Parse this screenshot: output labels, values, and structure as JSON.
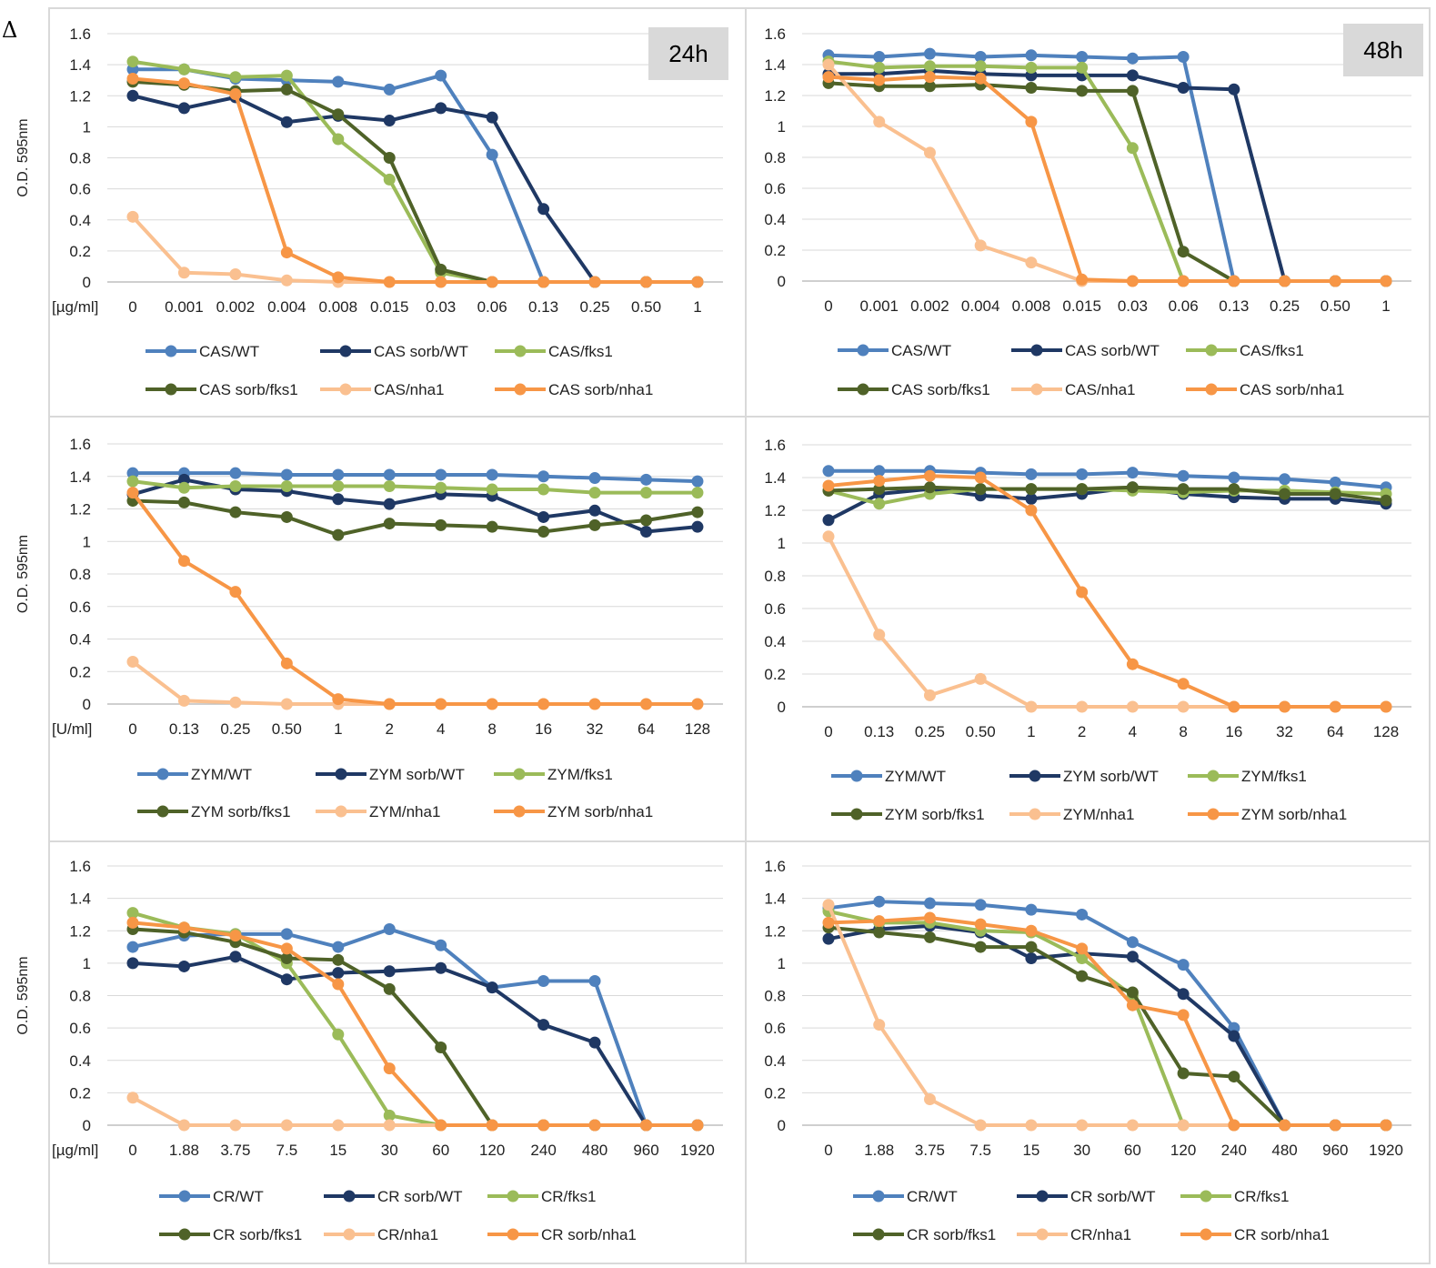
{
  "figure_label": "Δ",
  "series_colors": {
    "wt": "#4f81bd",
    "sorb_wt": "#1f3864",
    "fks1": "#9bbb59",
    "sorb_fks1": "#4f6228",
    "nha1": "#fac090",
    "sorb_nha1": "#f79646"
  },
  "chart_data": [
    {
      "type": "line",
      "panel": "CAS 24h",
      "timepoint": "24h",
      "ylabel": "O.D. 595nm",
      "unit_label": "[µg/ml]",
      "ylim": [
        0,
        1.6
      ],
      "yticks": [
        "0",
        "0.2",
        "0.4",
        "0.6",
        "0.8",
        "1",
        "1.2",
        "1.4",
        "1.6"
      ],
      "categories": [
        "0",
        "0.001",
        "0.002",
        "0.004",
        "0.008",
        "0.015",
        "0.03",
        "0.06",
        "0.13",
        "0.25",
        "0.50",
        "1"
      ],
      "grid": true,
      "legend_position": "bottom",
      "series": [
        {
          "name": "CAS/WT",
          "color_key": "wt",
          "values": [
            1.37,
            1.37,
            1.31,
            1.3,
            1.29,
            1.24,
            1.33,
            0.82,
            0,
            0,
            0,
            0
          ]
        },
        {
          "name": "CAS sorb/WT",
          "color_key": "sorb_wt",
          "values": [
            1.2,
            1.12,
            1.19,
            1.03,
            1.07,
            1.04,
            1.12,
            1.06,
            0.47,
            0,
            0,
            0
          ]
        },
        {
          "name": "CAS/fks1",
          "color_key": "fks1",
          "values": [
            1.42,
            1.37,
            1.32,
            1.33,
            0.92,
            0.66,
            0.06,
            0,
            0,
            0,
            0,
            0
          ]
        },
        {
          "name": "CAS sorb/fks1",
          "color_key": "sorb_fks1",
          "values": [
            1.29,
            1.27,
            1.23,
            1.24,
            1.08,
            0.8,
            0.08,
            0,
            0,
            0,
            0,
            0
          ]
        },
        {
          "name": "CAS/nha1",
          "color_key": "nha1",
          "values": [
            0.42,
            0.06,
            0.05,
            0.01,
            0,
            0,
            0,
            0,
            0,
            0,
            0,
            0
          ]
        },
        {
          "name": "CAS sorb/nha1",
          "color_key": "sorb_nha1",
          "values": [
            1.31,
            1.28,
            1.21,
            0.19,
            0.03,
            0,
            0,
            0,
            0,
            0,
            0,
            0
          ]
        }
      ]
    },
    {
      "type": "line",
      "panel": "CAS 48h",
      "timepoint": "48h",
      "ylabel": "",
      "unit_label": "",
      "ylim": [
        0,
        1.6
      ],
      "yticks": [
        "0",
        "0.2",
        "0.4",
        "0.6",
        "0.8",
        "1",
        "1.2",
        "1.4",
        "1.6"
      ],
      "categories": [
        "0",
        "0.001",
        "0.002",
        "0.004",
        "0.008",
        "0.015",
        "0.03",
        "0.06",
        "0.13",
        "0.25",
        "0.50",
        "1"
      ],
      "grid": true,
      "legend_position": "bottom",
      "series": [
        {
          "name": "CAS/WT",
          "color_key": "wt",
          "values": [
            1.46,
            1.45,
            1.47,
            1.45,
            1.46,
            1.45,
            1.44,
            1.45,
            0,
            0,
            0,
            0
          ]
        },
        {
          "name": "CAS sorb/WT",
          "color_key": "sorb_wt",
          "values": [
            1.34,
            1.34,
            1.36,
            1.34,
            1.33,
            1.33,
            1.33,
            1.25,
            1.24,
            0,
            0,
            0
          ]
        },
        {
          "name": "CAS/fks1",
          "color_key": "fks1",
          "values": [
            1.42,
            1.38,
            1.39,
            1.39,
            1.38,
            1.38,
            0.86,
            0,
            0,
            0,
            0,
            0
          ]
        },
        {
          "name": "CAS sorb/fks1",
          "color_key": "sorb_fks1",
          "values": [
            1.28,
            1.26,
            1.26,
            1.27,
            1.25,
            1.23,
            1.23,
            0.19,
            0,
            0,
            0,
            0
          ]
        },
        {
          "name": "CAS/nha1",
          "color_key": "nha1",
          "values": [
            1.4,
            1.03,
            0.83,
            0.23,
            0.12,
            0,
            0,
            0,
            0,
            0,
            0,
            0
          ]
        },
        {
          "name": "CAS sorb/nha1",
          "color_key": "sorb_nha1",
          "values": [
            1.32,
            1.3,
            1.32,
            1.31,
            1.03,
            0.01,
            0,
            0,
            0,
            0,
            0,
            0
          ]
        }
      ]
    },
    {
      "type": "line",
      "panel": "ZYM 24h",
      "timepoint": "",
      "ylabel": "O.D. 595nm",
      "unit_label": "[U/ml]",
      "ylim": [
        0,
        1.6
      ],
      "yticks": [
        "0",
        "0.2",
        "0.4",
        "0.6",
        "0.8",
        "1",
        "1.2",
        "1.4",
        "1.6"
      ],
      "categories": [
        "0",
        "0.13",
        "0.25",
        "0.50",
        "1",
        "2",
        "4",
        "8",
        "16",
        "32",
        "64",
        "128"
      ],
      "grid": true,
      "legend_position": "bottom",
      "series": [
        {
          "name": "ZYM/WT",
          "color_key": "wt",
          "values": [
            1.42,
            1.42,
            1.42,
            1.41,
            1.41,
            1.41,
            1.41,
            1.41,
            1.4,
            1.39,
            1.38,
            1.37
          ]
        },
        {
          "name": "ZYM sorb/WT",
          "color_key": "sorb_wt",
          "values": [
            1.29,
            1.38,
            1.32,
            1.31,
            1.26,
            1.23,
            1.29,
            1.28,
            1.15,
            1.19,
            1.06,
            1.09
          ]
        },
        {
          "name": "ZYM/fks1",
          "color_key": "fks1",
          "values": [
            1.37,
            1.33,
            1.34,
            1.34,
            1.34,
            1.34,
            1.33,
            1.32,
            1.32,
            1.3,
            1.3,
            1.3
          ]
        },
        {
          "name": "ZYM sorb/fks1",
          "color_key": "sorb_fks1",
          "values": [
            1.25,
            1.24,
            1.18,
            1.15,
            1.04,
            1.11,
            1.1,
            1.09,
            1.06,
            1.1,
            1.13,
            1.18
          ]
        },
        {
          "name": "ZYM/nha1",
          "color_key": "nha1",
          "values": [
            0.26,
            0.02,
            0.01,
            0,
            0,
            0,
            0,
            0,
            0,
            0,
            0,
            0
          ]
        },
        {
          "name": "ZYM sorb/nha1",
          "color_key": "sorb_nha1",
          "values": [
            1.3,
            0.88,
            0.69,
            0.25,
            0.03,
            0,
            0,
            0,
            0,
            0,
            0,
            0
          ]
        }
      ]
    },
    {
      "type": "line",
      "panel": "ZYM 48h",
      "timepoint": "",
      "ylabel": "",
      "unit_label": "",
      "ylim": [
        0,
        1.6
      ],
      "yticks": [
        "0",
        "0.2",
        "0.4",
        "0.6",
        "0.8",
        "1",
        "1.2",
        "1.4",
        "1.6"
      ],
      "categories": [
        "0",
        "0.13",
        "0.25",
        "0.50",
        "1",
        "2",
        "4",
        "8",
        "16",
        "32",
        "64",
        "128"
      ],
      "grid": true,
      "legend_position": "bottom",
      "series": [
        {
          "name": "ZYM/WT",
          "color_key": "wt",
          "values": [
            1.44,
            1.44,
            1.44,
            1.43,
            1.42,
            1.42,
            1.43,
            1.41,
            1.4,
            1.39,
            1.37,
            1.34
          ]
        },
        {
          "name": "ZYM sorb/WT",
          "color_key": "sorb_wt",
          "values": [
            1.14,
            1.3,
            1.33,
            1.29,
            1.27,
            1.3,
            1.34,
            1.3,
            1.28,
            1.27,
            1.27,
            1.24
          ]
        },
        {
          "name": "ZYM/fks1",
          "color_key": "fks1",
          "values": [
            1.32,
            1.24,
            1.3,
            1.33,
            1.33,
            1.33,
            1.32,
            1.31,
            1.32,
            1.32,
            1.31,
            1.3
          ]
        },
        {
          "name": "ZYM sorb/fks1",
          "color_key": "sorb_fks1",
          "values": [
            1.32,
            1.33,
            1.34,
            1.33,
            1.33,
            1.33,
            1.34,
            1.33,
            1.33,
            1.3,
            1.3,
            1.26
          ]
        },
        {
          "name": "ZYM/nha1",
          "color_key": "nha1",
          "values": [
            1.04,
            0.44,
            0.07,
            0.17,
            0,
            0,
            0,
            0,
            0,
            0,
            0,
            0
          ]
        },
        {
          "name": "ZYM sorb/nha1",
          "color_key": "sorb_nha1",
          "values": [
            1.35,
            1.38,
            1.41,
            1.4,
            1.2,
            0.7,
            0.26,
            0.14,
            0,
            0,
            0,
            0
          ]
        }
      ]
    },
    {
      "type": "line",
      "panel": "CR 24h",
      "timepoint": "",
      "ylabel": "O.D. 595nm",
      "unit_label": "[µg/ml]",
      "ylim": [
        0,
        1.6
      ],
      "yticks": [
        "0",
        "0.2",
        "0.4",
        "0.6",
        "0.8",
        "1",
        "1.2",
        "1.4",
        "1.6"
      ],
      "categories": [
        "0",
        "1.88",
        "3.75",
        "7.5",
        "15",
        "30",
        "60",
        "120",
        "240",
        "480",
        "960",
        "1920"
      ],
      "grid": true,
      "legend_position": "bottom",
      "series": [
        {
          "name": "CR/WT",
          "color_key": "wt",
          "values": [
            1.1,
            1.17,
            1.18,
            1.18,
            1.1,
            1.21,
            1.11,
            0.85,
            0.89,
            0.89,
            0,
            0
          ]
        },
        {
          "name": "CR sorb/WT",
          "color_key": "sorb_wt",
          "values": [
            1.0,
            0.98,
            1.04,
            0.9,
            0.94,
            0.95,
            0.97,
            0.85,
            0.62,
            0.51,
            0,
            0
          ]
        },
        {
          "name": "CR/fks1",
          "color_key": "fks1",
          "values": [
            1.31,
            1.22,
            1.18,
            1.0,
            0.56,
            0.06,
            0,
            0,
            0,
            0,
            0,
            0
          ]
        },
        {
          "name": "CR sorb/fks1",
          "color_key": "sorb_fks1",
          "values": [
            1.21,
            1.19,
            1.13,
            1.03,
            1.02,
            0.84,
            0.48,
            0,
            0,
            0,
            0,
            0
          ]
        },
        {
          "name": "CR/nha1",
          "color_key": "nha1",
          "values": [
            0.17,
            0,
            0,
            0,
            0,
            0,
            0,
            0,
            0,
            0,
            0,
            0
          ]
        },
        {
          "name": "CR sorb/nha1",
          "color_key": "sorb_nha1",
          "values": [
            1.25,
            1.22,
            1.17,
            1.09,
            0.87,
            0.35,
            0,
            0,
            0,
            0,
            0,
            0
          ]
        }
      ]
    },
    {
      "type": "line",
      "panel": "CR 48h",
      "timepoint": "",
      "ylabel": "",
      "unit_label": "",
      "ylim": [
        0,
        1.6
      ],
      "yticks": [
        "0",
        "0.2",
        "0.4",
        "0.6",
        "0.8",
        "1",
        "1.2",
        "1.4",
        "1.6"
      ],
      "categories": [
        "0",
        "1.88",
        "3.75",
        "7.5",
        "15",
        "30",
        "60",
        "120",
        "240",
        "480",
        "960",
        "1920"
      ],
      "grid": true,
      "legend_position": "bottom",
      "series": [
        {
          "name": "CR/WT",
          "color_key": "wt",
          "values": [
            1.34,
            1.38,
            1.37,
            1.36,
            1.33,
            1.3,
            1.13,
            0.99,
            0.6,
            0,
            0,
            0
          ]
        },
        {
          "name": "CR sorb/WT",
          "color_key": "sorb_wt",
          "values": [
            1.15,
            1.21,
            1.23,
            1.19,
            1.03,
            1.06,
            1.04,
            0.81,
            0.55,
            0,
            0,
            0
          ]
        },
        {
          "name": "CR/fks1",
          "color_key": "fks1",
          "values": [
            1.32,
            1.25,
            1.25,
            1.2,
            1.19,
            1.03,
            0.8,
            0,
            0,
            0,
            0,
            0
          ]
        },
        {
          "name": "CR sorb/fks1",
          "color_key": "sorb_fks1",
          "values": [
            1.22,
            1.19,
            1.16,
            1.1,
            1.1,
            0.92,
            0.82,
            0.32,
            0.3,
            0,
            0,
            0
          ]
        },
        {
          "name": "CR/nha1",
          "color_key": "nha1",
          "values": [
            1.36,
            0.62,
            0.16,
            0,
            0,
            0,
            0,
            0,
            0,
            0,
            0,
            0
          ]
        },
        {
          "name": "CR sorb/nha1",
          "color_key": "sorb_nha1",
          "values": [
            1.25,
            1.26,
            1.28,
            1.24,
            1.2,
            1.09,
            0.74,
            0.68,
            0,
            0,
            0,
            0
          ]
        }
      ]
    }
  ]
}
